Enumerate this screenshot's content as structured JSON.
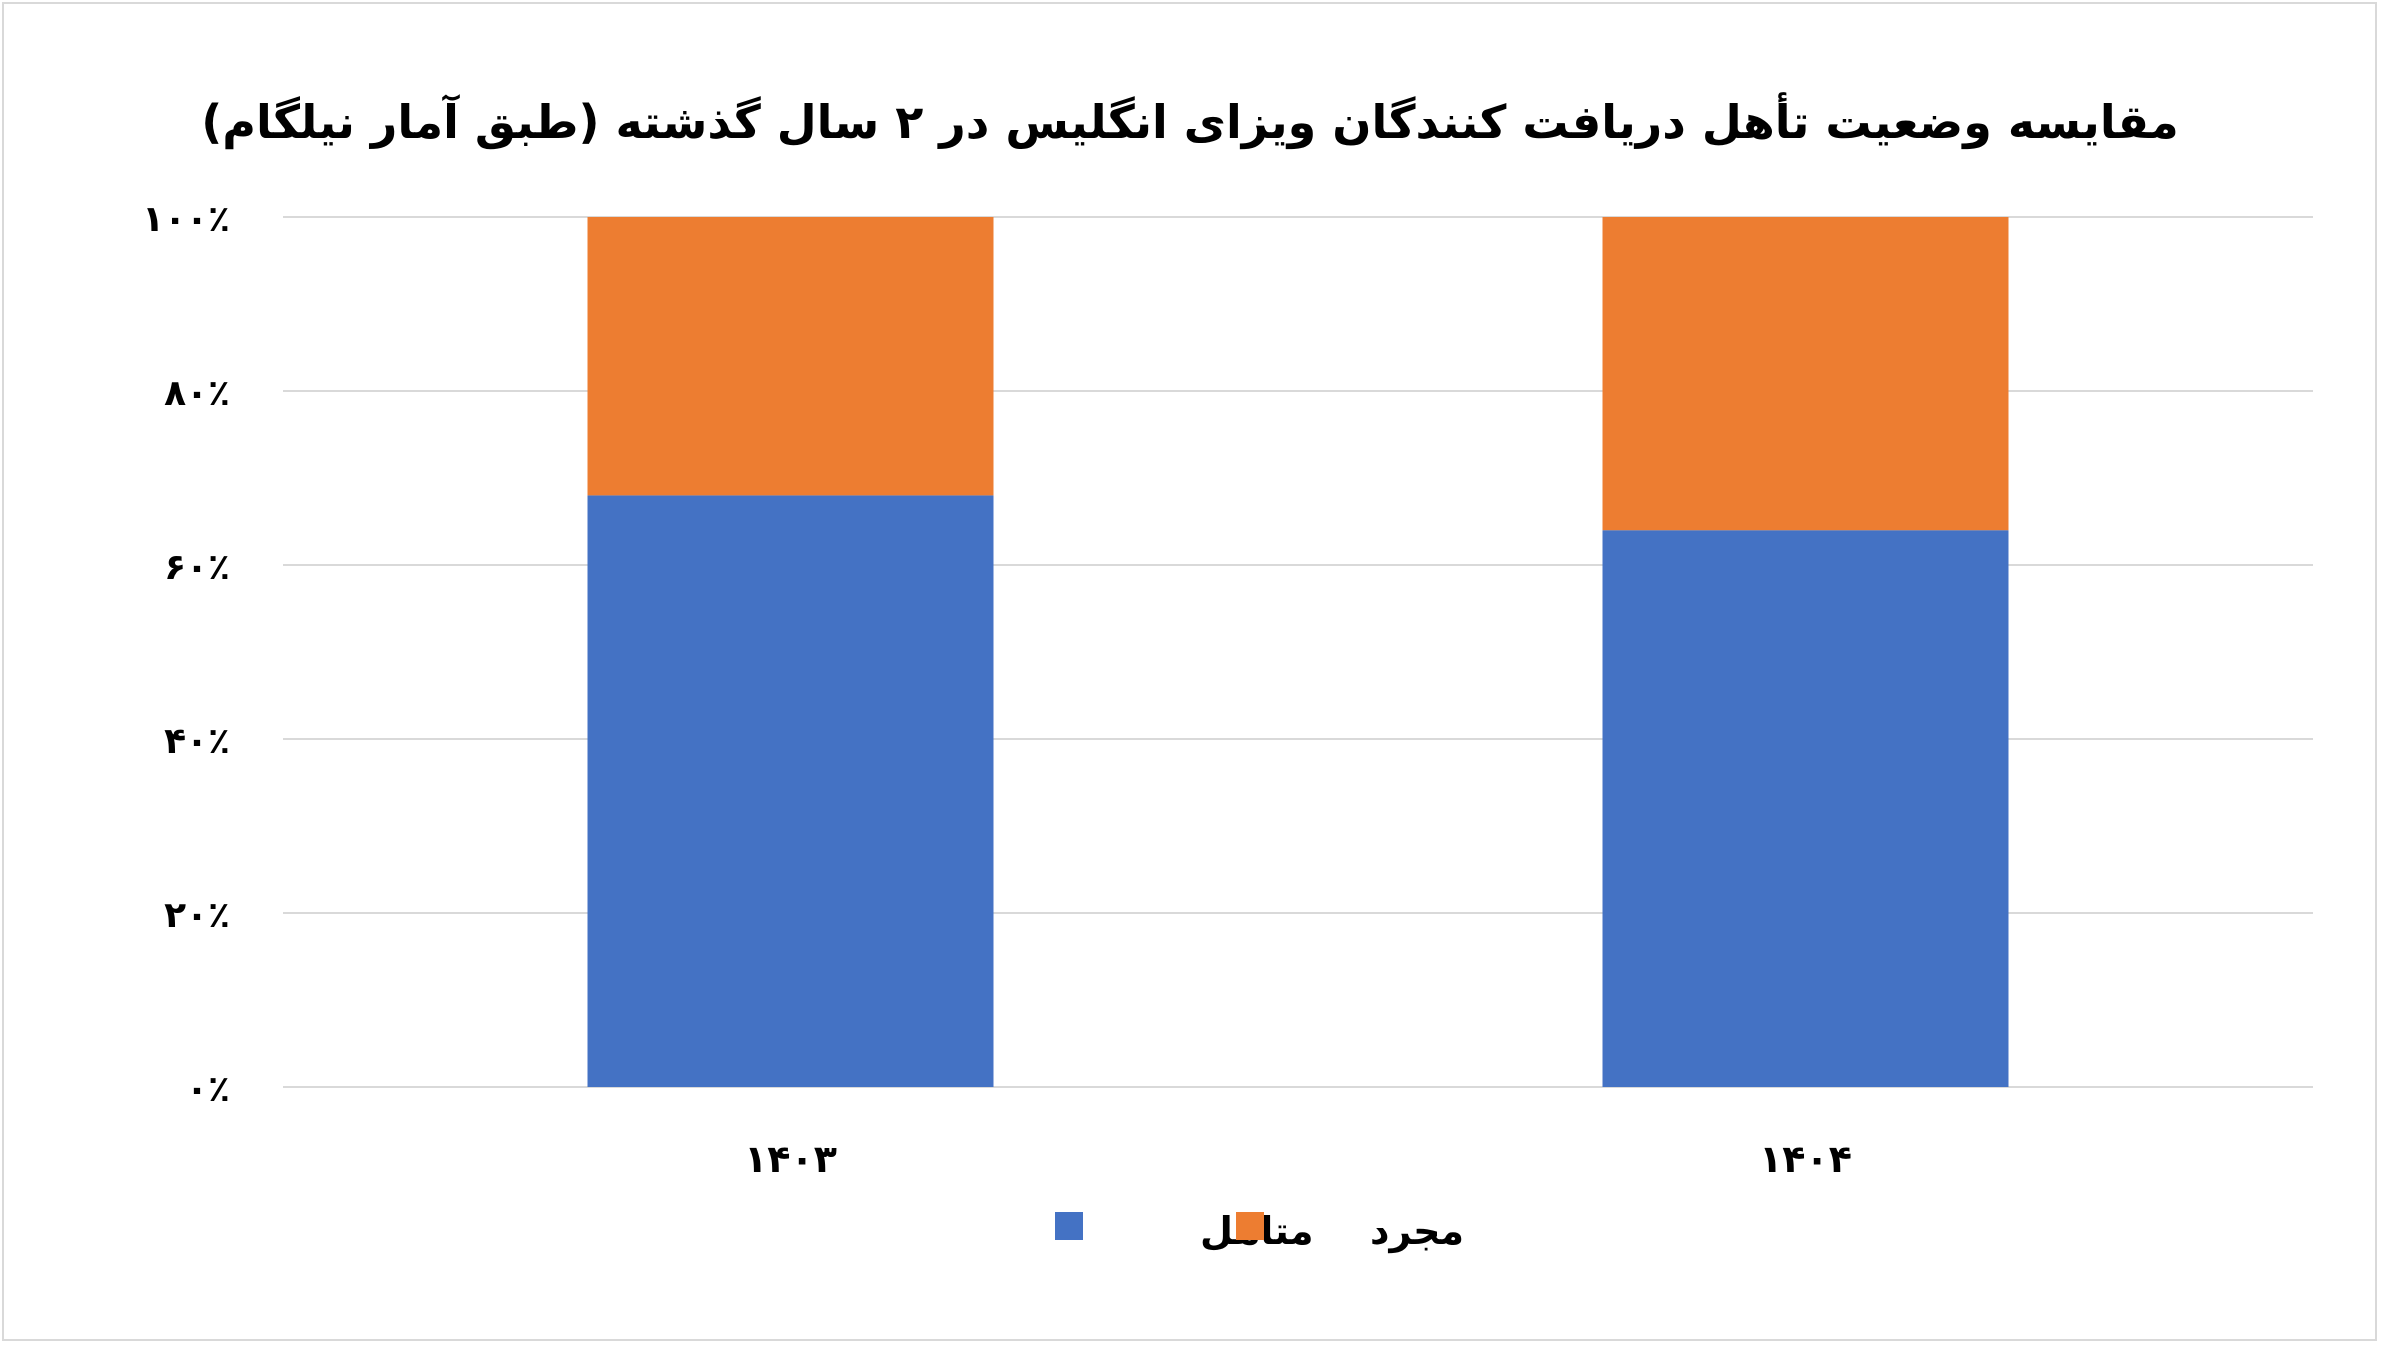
{
  "chart_data": {
    "type": "bar",
    "stacked": "percent",
    "title": "مقایسه وضعیت تأهل دریافت کنندگان ویزای انگلیس در ۲ سال گذشته (طبق آمار نیلگام)",
    "categories": [
      "۱۴۰۳",
      "۱۴۰۴"
    ],
    "series": [
      {
        "name": "متاهل",
        "values": [
          68,
          64
        ],
        "color": "#4472C4"
      },
      {
        "name": "مجرد",
        "values": [
          32,
          36
        ],
        "color": "#ED7D31"
      }
    ],
    "ylim": [
      0,
      100
    ],
    "yticks": [
      0,
      20,
      40,
      60,
      80,
      100
    ],
    "ytick_labels": [
      "۰٪",
      "۲۰٪",
      "۴۰٪",
      "۶۰٪",
      "۸۰٪",
      "۱۰۰٪"
    ],
    "grid": true,
    "gridline_color": "#d9d9d9",
    "legend": "bottom"
  }
}
